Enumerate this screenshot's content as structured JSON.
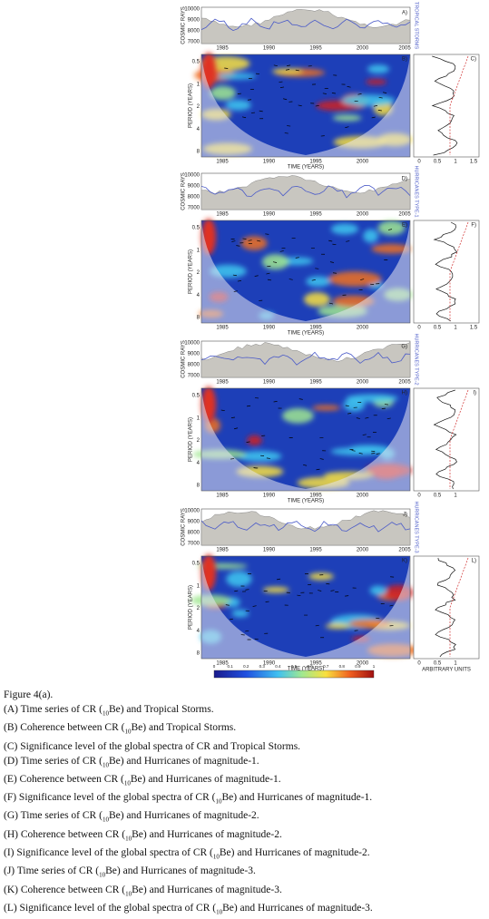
{
  "groups": [
    {
      "series_label": "A)",
      "right_label": "TROPICAL STORMS",
      "coherence_label": "B)",
      "spectrum_label": "C)",
      "spectrum_ticks": [
        0,
        0.5,
        1,
        1.5
      ]
    },
    {
      "series_label": "D)",
      "right_label": "HURRICANES TYPE-1",
      "coherence_label": "E)",
      "spectrum_label": "F)",
      "spectrum_ticks": [
        0,
        0.5,
        1,
        1.5
      ]
    },
    {
      "series_label": "G)",
      "right_label": "HURRICANES TYPE-2",
      "coherence_label": "H)",
      "spectrum_label": "I)",
      "spectrum_ticks": [
        0,
        0.5,
        1
      ]
    },
    {
      "series_label": "J)",
      "right_label": "HURRICANES TYPE-3",
      "coherence_label": "K)",
      "spectrum_label": "L)",
      "spectrum_ticks": [
        0,
        0.5,
        1
      ]
    }
  ],
  "axis_text": {
    "cosmic": "COSMIC RAYS",
    "period": "PERIOD (YEARS)",
    "time": "TIME (YEARS)",
    "units": "ARBITRARY UNITS"
  },
  "cosmic_ticks": [
    10000,
    9000,
    8000,
    7000
  ],
  "years": [
    1985,
    1990,
    1995,
    2000,
    2005
  ],
  "periods": [
    0.5,
    1,
    2,
    4,
    8
  ],
  "colorbar_ticks": [
    0,
    0.1,
    0.2,
    0.3,
    0.4,
    0.5,
    0.6,
    0.7,
    0.8,
    0.9,
    1
  ],
  "caption": {
    "title": "Figure 4(a).",
    "lines": [
      {
        "pre": "(A) Time series of CR (",
        "sub": "10",
        "post": "Be) and Tropical Storms."
      },
      {
        "pre": "(B) Coherence between CR (",
        "sub": "10",
        "post": "Be) and Tropical Storms."
      },
      {
        "pre": "(C) Significance level of the global spectra of CR and Tropical Storms."
      },
      {
        "pre": "(D) Time series of CR (",
        "sub": "10",
        "post": "Be) and Hurricanes of magnitude-1."
      },
      {
        "pre": "(E) Coherence between CR (",
        "sub": "10",
        "post": "Be) and Hurricanes of magnitude-1."
      },
      {
        "pre": "(F) Significance level of the global spectra of CR (",
        "sub": "10",
        "post": "Be) and Hurricanes of magnitude-1."
      },
      {
        "pre": "(G) Time series of CR (",
        "sub": "10",
        "post": "Be) and Hurricanes of magnitude-2."
      },
      {
        "pre": "(H) Coherence between CR (",
        "sub": "10",
        "post": "Be) and Hurricanes of magnitude-2."
      },
      {
        "pre": "(I) Significance level of the global spectra of CR (",
        "sub": "10",
        "post": "Be) and Hurricanes of magnitude-2."
      },
      {
        "pre": "(J) Time series of CR (",
        "sub": "10",
        "post": "Be) and Hurricanes of magnitude-3."
      },
      {
        "pre": "(K) Coherence between CR (",
        "sub": "10",
        "post": "Be) and Hurricanes of magnitude-3."
      },
      {
        "pre": "(L) Significance level of the global spectra of CR (",
        "sub": "10",
        "post": "Be) and Hurricanes of magnitude-3."
      }
    ]
  }
}
